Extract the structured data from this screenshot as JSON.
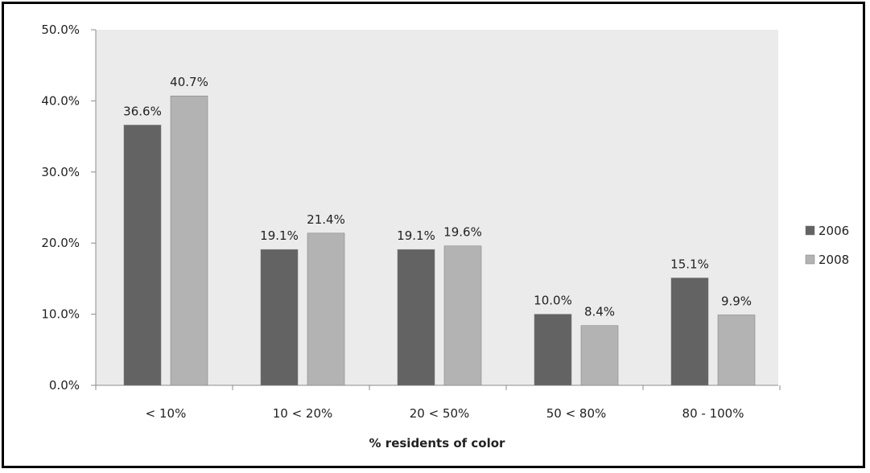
{
  "chart_data": {
    "type": "bar",
    "xlabel": "% residents of color",
    "ylabel": "",
    "ylim": [
      0,
      50
    ],
    "yticks": [
      "0.0%",
      "10.0%",
      "20.0%",
      "30.0%",
      "40.0%",
      "50.0%"
    ],
    "ytick_values": [
      0,
      10,
      20,
      30,
      40,
      50
    ],
    "categories": [
      "< 10%",
      "10 < 20%",
      "20 < 50%",
      "50 < 80%",
      "80 - 100%"
    ],
    "series": [
      {
        "name": "2006",
        "color": "#636363",
        "values": [
          36.6,
          19.1,
          19.1,
          10.0,
          15.1
        ],
        "labels": [
          "36.6%",
          "19.1%",
          "19.1%",
          "10.0%",
          "15.1%"
        ]
      },
      {
        "name": "2008",
        "color": "#b3b3b3",
        "values": [
          40.7,
          21.4,
          19.6,
          8.4,
          9.9
        ],
        "labels": [
          "40.7%",
          "21.4%",
          "19.6%",
          "8.4%",
          "9.9%"
        ]
      }
    ],
    "plot_background": "#ebebeb",
    "grid": false,
    "legend_position": "right"
  }
}
